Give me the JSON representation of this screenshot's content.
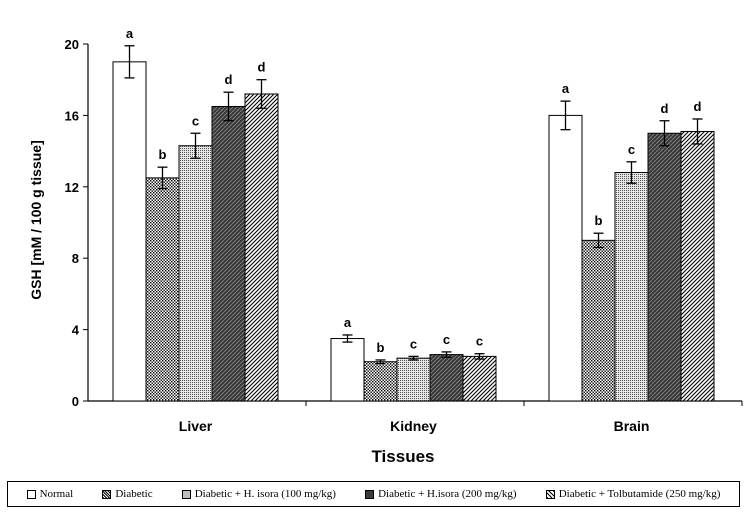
{
  "chart_data": {
    "type": "bar",
    "title": "",
    "xlabel": "Tissues",
    "ylabel": "GSH [mM / 100 g  tissue]",
    "ylim": [
      0,
      20
    ],
    "yticks": [
      "0",
      "4",
      "8",
      "12",
      "16",
      "20"
    ],
    "categories": [
      "Liver",
      "Kidney",
      "Brain"
    ],
    "series": [
      {
        "name": "Normal",
        "values": [
          19.0,
          3.5,
          16.0
        ],
        "errors": [
          0.9,
          0.2,
          0.8
        ],
        "labels": [
          "a",
          "a",
          "a"
        ],
        "fill": "#ffffff"
      },
      {
        "name": "Diabetic",
        "values": [
          12.5,
          2.2,
          9.0
        ],
        "errors": [
          0.6,
          0.1,
          0.4
        ],
        "labels": [
          "b",
          "b",
          "b"
        ],
        "fill": "#c8c8c8"
      },
      {
        "name": "Diabetic + H. isora (100 mg/kg)",
        "values": [
          14.3,
          2.4,
          12.8
        ],
        "errors": [
          0.7,
          0.1,
          0.6
        ],
        "labels": [
          "c",
          "c",
          "c"
        ],
        "fill": "#b4b4b4"
      },
      {
        "name": "Diabetic + H.isora (200 mg/kg)",
        "values": [
          16.5,
          2.6,
          15.0
        ],
        "errors": [
          0.8,
          0.15,
          0.7
        ],
        "labels": [
          "d",
          "c",
          "d"
        ],
        "fill": "#505050"
      },
      {
        "name": "Diabetic + Tolbutamide (250 mg/kg)",
        "values": [
          17.2,
          2.5,
          15.1
        ],
        "errors": [
          0.8,
          0.15,
          0.7
        ],
        "labels": [
          "d",
          "c",
          "d"
        ],
        "fill": "#8c8c8c"
      }
    ],
    "legend_position": "bottom",
    "grid": false
  }
}
